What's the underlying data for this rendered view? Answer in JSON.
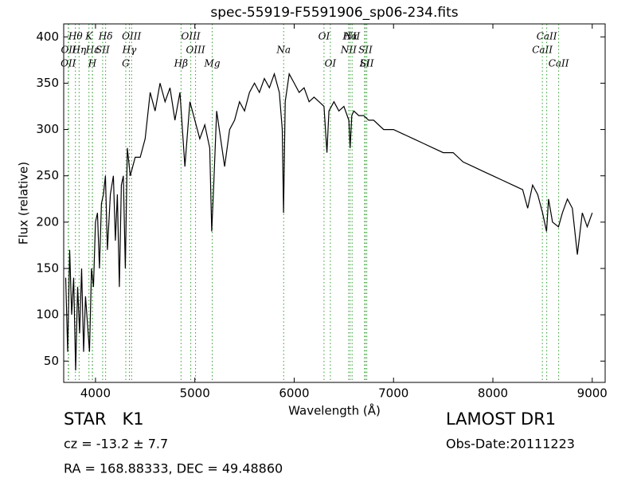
{
  "chart_data": {
    "type": "line",
    "title": "spec-55919-F5591906_sp06-234.fits",
    "x_label": "Wavelength (Å)",
    "y_label": "Flux (relative)",
    "xlim": [
      3680,
      9130
    ],
    "ylim": [
      27,
      414
    ],
    "xticks": [
      4000,
      5000,
      6000,
      7000,
      8000,
      9000
    ],
    "yticks": [
      50,
      100,
      150,
      200,
      250,
      300,
      350,
      400
    ],
    "color": "#000000",
    "line_color": "#2ca02c",
    "x": [
      3700,
      3720,
      3740,
      3760,
      3780,
      3800,
      3820,
      3840,
      3860,
      3880,
      3900,
      3920,
      3940,
      3960,
      3980,
      4000,
      4020,
      4040,
      4060,
      4080,
      4100,
      4120,
      4150,
      4180,
      4200,
      4220,
      4240,
      4260,
      4280,
      4300,
      4320,
      4350,
      4400,
      4450,
      4500,
      4550,
      4600,
      4650,
      4700,
      4750,
      4800,
      4850,
      4900,
      4950,
      5000,
      5050,
      5100,
      5150,
      5170,
      5190,
      5220,
      5300,
      5350,
      5400,
      5450,
      5500,
      5550,
      5600,
      5650,
      5700,
      5750,
      5800,
      5850,
      5880,
      5893,
      5910,
      5950,
      6000,
      6050,
      6100,
      6150,
      6200,
      6250,
      6300,
      6330,
      6350,
      6400,
      6450,
      6500,
      6550,
      6563,
      6580,
      6600,
      6650,
      6700,
      6750,
      6800,
      6900,
      7000,
      7100,
      7200,
      7300,
      7400,
      7500,
      7600,
      7700,
      7800,
      7900,
      8000,
      8100,
      8200,
      8300,
      8350,
      8400,
      8450,
      8500,
      8540,
      8560,
      8600,
      8660,
      8700,
      8750,
      8800,
      8850,
      8900,
      8950,
      9000
    ],
    "values": [
      140,
      60,
      170,
      100,
      140,
      40,
      130,
      80,
      150,
      60,
      120,
      90,
      60,
      150,
      130,
      200,
      210,
      150,
      220,
      230,
      250,
      170,
      230,
      250,
      180,
      230,
      130,
      240,
      250,
      150,
      280,
      250,
      270,
      270,
      290,
      340,
      320,
      350,
      330,
      345,
      310,
      340,
      260,
      330,
      310,
      290,
      305,
      280,
      190,
      240,
      320,
      260,
      300,
      310,
      330,
      320,
      340,
      350,
      340,
      355,
      345,
      360,
      340,
      300,
      210,
      330,
      360,
      350,
      340,
      345,
      330,
      335,
      330,
      325,
      275,
      320,
      330,
      320,
      325,
      310,
      280,
      315,
      320,
      315,
      315,
      310,
      310,
      300,
      300,
      295,
      290,
      285,
      280,
      275,
      275,
      265,
      260,
      255,
      250,
      245,
      240,
      235,
      215,
      240,
      230,
      210,
      190,
      225,
      200,
      195,
      210,
      225,
      215,
      165,
      210,
      195,
      210
    ],
    "lines": [
      {
        "name": "OII",
        "wavelength": 3726
      },
      {
        "name": "OII",
        "wavelength": 3729
      },
      {
        "name": "Hθ",
        "wavelength": 3798
      },
      {
        "name": "Hη",
        "wavelength": 3835
      },
      {
        "name": "K",
        "wavelength": 3934
      },
      {
        "name": "Hε",
        "wavelength": 3970
      },
      {
        "name": "SII",
        "wavelength": 4072
      },
      {
        "name": "H",
        "wavelength": 3968
      },
      {
        "name": "Hδ",
        "wavelength": 4102
      },
      {
        "name": "G",
        "wavelength": 4305
      },
      {
        "name": "OIII",
        "wavelength": 4363
      },
      {
        "name": "Hγ",
        "wavelength": 4341
      },
      {
        "name": "OIII",
        "wavelength": 4959
      },
      {
        "name": "Hβ",
        "wavelength": 4861
      },
      {
        "name": "OIII",
        "wavelength": 5007
      },
      {
        "name": "Mg",
        "wavelength": 5175
      },
      {
        "name": "Na",
        "wavelength": 5894
      },
      {
        "name": "OI",
        "wavelength": 6300
      },
      {
        "name": "OI",
        "wavelength": 6364
      },
      {
        "name": "NII",
        "wavelength": 6548
      },
      {
        "name": "Hα",
        "wavelength": 6563
      },
      {
        "name": "NII",
        "wavelength": 6583
      },
      {
        "name": "Li",
        "wavelength": 6708
      },
      {
        "name": "SII",
        "wavelength": 6717
      },
      {
        "name": "SII",
        "wavelength": 6731
      },
      {
        "name": "CaII",
        "wavelength": 8498
      },
      {
        "name": "CaII",
        "wavelength": 8542
      },
      {
        "name": "CaII",
        "wavelength": 8662
      }
    ],
    "class": "STAR   K1",
    "cz": "cz = -13.2 ± 7.7",
    "coords": "RA = 168.88333, DEC = 49.48860",
    "survey": "LAMOST DR1",
    "obs_date": "Obs-Date:20111223"
  }
}
